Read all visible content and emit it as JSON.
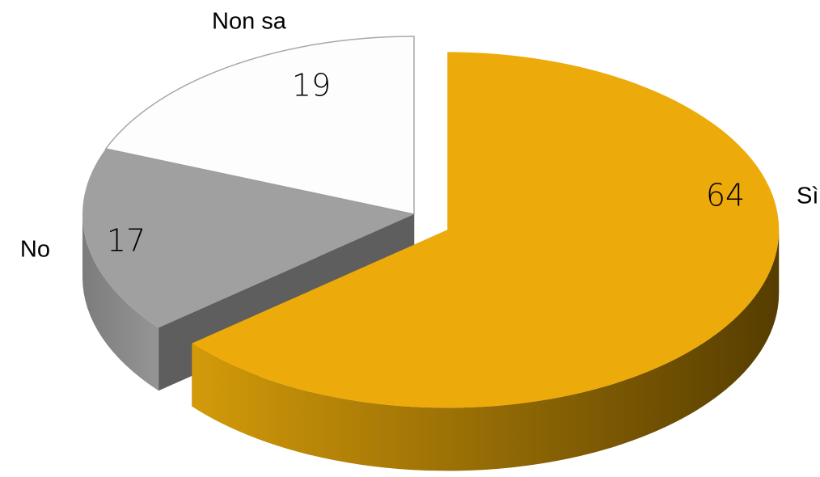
{
  "chart_data": {
    "type": "pie",
    "categories": [
      "Sì",
      "No",
      "Non sa"
    ],
    "values": [
      64,
      17,
      19
    ],
    "colors": [
      "#EDAA0B",
      "#A0A0A0",
      "#FDFDFD"
    ]
  }
}
